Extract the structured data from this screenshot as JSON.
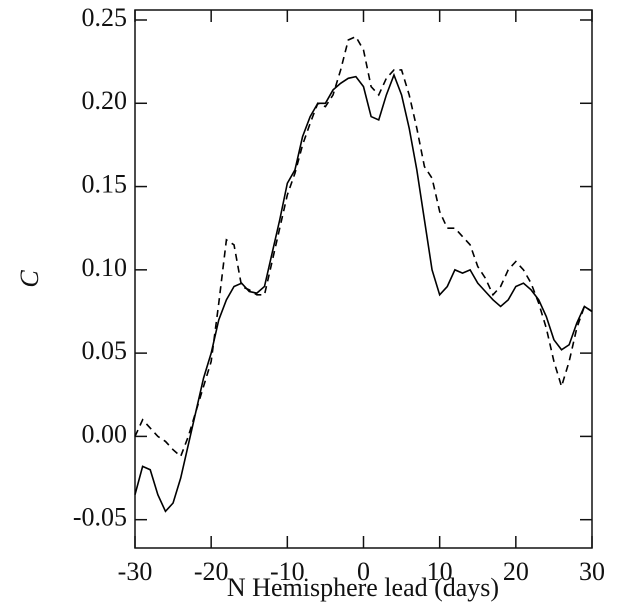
{
  "chart_data": {
    "type": "line",
    "x_label": "N Hemisphere lead (days)",
    "y_label": "C",
    "x": [
      -30,
      -29,
      -28,
      -27,
      -26,
      -25,
      -24,
      -23,
      -22,
      -21,
      -20,
      -19,
      -18,
      -17,
      -16,
      -15,
      -14,
      -13,
      -12,
      -11,
      -10,
      -9,
      -8,
      -7,
      -6,
      -5,
      -4,
      -3,
      -2,
      -1,
      0,
      1,
      2,
      3,
      4,
      5,
      6,
      7,
      8,
      9,
      10,
      11,
      12,
      13,
      14,
      15,
      16,
      17,
      18,
      19,
      20,
      21,
      22,
      23,
      24,
      25,
      26,
      27,
      28,
      29,
      30
    ],
    "series": [
      {
        "color": "#000000",
        "dash": "solid",
        "values": [
          -0.035,
          -0.018,
          -0.02,
          -0.035,
          -0.045,
          -0.04,
          -0.025,
          -0.005,
          0.015,
          0.035,
          0.05,
          0.07,
          0.082,
          0.09,
          0.092,
          0.087,
          0.086,
          0.09,
          0.11,
          0.13,
          0.152,
          0.16,
          0.18,
          0.192,
          0.2,
          0.2,
          0.208,
          0.212,
          0.215,
          0.216,
          0.21,
          0.192,
          0.19,
          0.205,
          0.217,
          0.205,
          0.185,
          0.16,
          0.13,
          0.1,
          0.085,
          0.09,
          0.1,
          0.098,
          0.1,
          0.092,
          0.087,
          0.082,
          0.078,
          0.082,
          0.09,
          0.092,
          0.088,
          0.082,
          0.072,
          0.058,
          0.052,
          0.055,
          0.068,
          0.078,
          0.075
        ]
      },
      {
        "color": "#000000",
        "dash": "dashed",
        "values": [
          0.0,
          0.01,
          0.005,
          0.0,
          -0.003,
          -0.008,
          -0.012,
          0.0,
          0.015,
          0.03,
          0.045,
          0.08,
          0.118,
          0.115,
          0.09,
          0.088,
          0.085,
          0.085,
          0.105,
          0.125,
          0.145,
          0.158,
          0.175,
          0.188,
          0.2,
          0.198,
          0.205,
          0.22,
          0.238,
          0.24,
          0.232,
          0.21,
          0.205,
          0.215,
          0.22,
          0.22,
          0.205,
          0.185,
          0.162,
          0.155,
          0.135,
          0.125,
          0.125,
          0.12,
          0.115,
          0.102,
          0.095,
          0.085,
          0.09,
          0.1,
          0.105,
          0.1,
          0.092,
          0.08,
          0.065,
          0.045,
          0.03,
          0.045,
          0.065,
          0.078,
          0.075
        ]
      }
    ],
    "xlim": [
      -30,
      30
    ],
    "ylim": [
      -0.067,
      0.256
    ],
    "xticks": [
      -30,
      -20,
      -10,
      0,
      10,
      20,
      30
    ],
    "yticks": [
      {
        "value": -0.05,
        "label": "-0.05"
      },
      {
        "value": 0,
        "label": "0.00"
      },
      0.05,
      {
        "value": 0.1,
        "label": "0.10"
      },
      0.15,
      {
        "value": 0.2,
        "label": "0.20"
      },
      0.25
    ],
    "grid": false
  }
}
